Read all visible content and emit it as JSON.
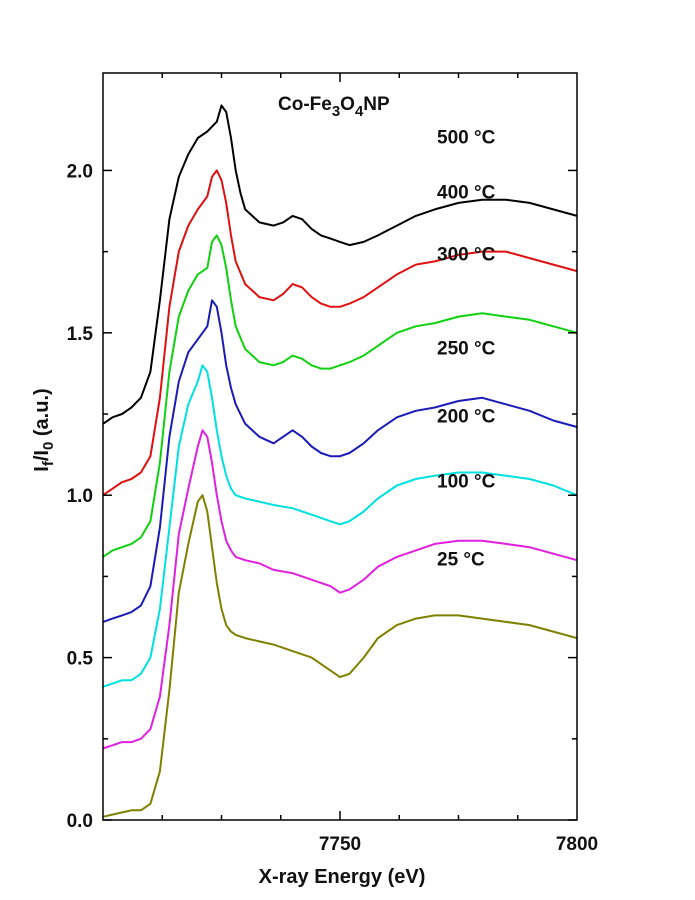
{
  "chart_data": {
    "type": "line",
    "title_parts": {
      "a": "Co-Fe",
      "b": "3",
      "c": "O",
      "d": "4",
      "e": "NP"
    },
    "xlabel": "X-ray Energy (eV)",
    "ylabel_parts": {
      "a": "I",
      "b": "f",
      "c": "/I",
      "d": "0",
      "e": " (a.u.)"
    },
    "xlim": [
      7700,
      7800
    ],
    "ylim": [
      0,
      2.3
    ],
    "x_ticks": [
      7750,
      7800
    ],
    "y_ticks": [
      0.0,
      0.5,
      1.0,
      1.5,
      2.0
    ],
    "y_tick_labels": [
      "0.0",
      "0.5",
      "1.0",
      "1.5",
      "2.0"
    ],
    "legend": "inline labels at right",
    "grid": false,
    "series": [
      {
        "name": "25 °C",
        "color": "#808000",
        "x": [
          7700,
          7703,
          7706,
          7708,
          7710,
          7712,
          7714,
          7716,
          7718,
          7720,
          7721,
          7722,
          7723,
          7724,
          7725,
          7726,
          7727,
          7728,
          7730,
          7733,
          7736,
          7740,
          7744,
          7748,
          7750,
          7752,
          7755,
          7758,
          7762,
          7766,
          7770,
          7775,
          7780,
          7785,
          7790,
          7795,
          7800
        ],
        "y": [
          0.01,
          0.02,
          0.03,
          0.03,
          0.05,
          0.15,
          0.4,
          0.7,
          0.85,
          0.98,
          1.0,
          0.95,
          0.84,
          0.73,
          0.65,
          0.6,
          0.58,
          0.57,
          0.56,
          0.55,
          0.54,
          0.52,
          0.5,
          0.46,
          0.44,
          0.45,
          0.5,
          0.56,
          0.6,
          0.62,
          0.63,
          0.63,
          0.62,
          0.61,
          0.6,
          0.58,
          0.56
        ]
      },
      {
        "name": "100 °C",
        "color": "#e020e0",
        "x": [
          7700,
          7702,
          7704,
          7706,
          7708,
          7710,
          7712,
          7714,
          7716,
          7718,
          7720,
          7721,
          7722,
          7723,
          7724,
          7725,
          7726,
          7727,
          7728,
          7730,
          7733,
          7736,
          7740,
          7744,
          7748,
          7750,
          7752,
          7755,
          7758,
          7762,
          7766,
          7770,
          7775,
          7780,
          7785,
          7790,
          7795,
          7800
        ],
        "y": [
          0.22,
          0.23,
          0.24,
          0.24,
          0.25,
          0.28,
          0.38,
          0.6,
          0.88,
          1.02,
          1.15,
          1.2,
          1.18,
          1.1,
          1.0,
          0.92,
          0.86,
          0.83,
          0.81,
          0.8,
          0.79,
          0.77,
          0.76,
          0.74,
          0.72,
          0.7,
          0.71,
          0.74,
          0.78,
          0.81,
          0.83,
          0.85,
          0.86,
          0.86,
          0.85,
          0.84,
          0.82,
          0.8
        ]
      },
      {
        "name": "200 °C",
        "color": "#00e0e0",
        "x": [
          7700,
          7702,
          7704,
          7706,
          7708,
          7710,
          7712,
          7714,
          7716,
          7718,
          7720,
          7721,
          7722,
          7723,
          7724,
          7725,
          7726,
          7727,
          7728,
          7730,
          7733,
          7736,
          7740,
          7744,
          7748,
          7750,
          7752,
          7755,
          7758,
          7762,
          7766,
          7770,
          7775,
          7780,
          7785,
          7790,
          7795,
          7800
        ],
        "y": [
          0.41,
          0.42,
          0.43,
          0.43,
          0.45,
          0.5,
          0.65,
          0.9,
          1.15,
          1.28,
          1.35,
          1.4,
          1.38,
          1.3,
          1.2,
          1.12,
          1.06,
          1.02,
          1.0,
          0.99,
          0.98,
          0.97,
          0.96,
          0.94,
          0.92,
          0.91,
          0.92,
          0.95,
          0.99,
          1.03,
          1.05,
          1.06,
          1.07,
          1.07,
          1.06,
          1.05,
          1.03,
          1.0
        ]
      },
      {
        "name": "250 °C",
        "color": "#1a1ab8",
        "x": [
          7700,
          7702,
          7704,
          7706,
          7708,
          7710,
          7712,
          7714,
          7716,
          7718,
          7720,
          7722,
          7723,
          7724,
          7725,
          7726,
          7727,
          7728,
          7730,
          7733,
          7736,
          7738,
          7740,
          7742,
          7744,
          7746,
          7748,
          7750,
          7752,
          7755,
          7758,
          7762,
          7766,
          7770,
          7775,
          7780,
          7785,
          7790,
          7795,
          7800
        ],
        "y": [
          0.61,
          0.62,
          0.63,
          0.64,
          0.66,
          0.72,
          0.9,
          1.18,
          1.35,
          1.44,
          1.48,
          1.52,
          1.6,
          1.58,
          1.5,
          1.4,
          1.33,
          1.28,
          1.22,
          1.18,
          1.16,
          1.18,
          1.2,
          1.18,
          1.15,
          1.13,
          1.12,
          1.12,
          1.13,
          1.16,
          1.2,
          1.24,
          1.26,
          1.27,
          1.29,
          1.3,
          1.28,
          1.26,
          1.23,
          1.21
        ]
      },
      {
        "name": "300 °C",
        "color": "#10d010",
        "x": [
          7700,
          7702,
          7704,
          7706,
          7708,
          7710,
          7712,
          7714,
          7716,
          7718,
          7720,
          7722,
          7723,
          7724,
          7725,
          7726,
          7727,
          7728,
          7730,
          7733,
          7736,
          7738,
          7740,
          7742,
          7744,
          7746,
          7748,
          7750,
          7752,
          7755,
          7758,
          7762,
          7766,
          7770,
          7775,
          7780,
          7785,
          7790,
          7795,
          7800
        ],
        "y": [
          0.81,
          0.83,
          0.84,
          0.85,
          0.87,
          0.92,
          1.1,
          1.38,
          1.55,
          1.63,
          1.68,
          1.7,
          1.78,
          1.8,
          1.77,
          1.7,
          1.6,
          1.52,
          1.45,
          1.41,
          1.4,
          1.41,
          1.43,
          1.42,
          1.4,
          1.39,
          1.39,
          1.4,
          1.41,
          1.43,
          1.46,
          1.5,
          1.52,
          1.53,
          1.55,
          1.56,
          1.55,
          1.54,
          1.52,
          1.5
        ]
      },
      {
        "name": "400 °C",
        "color": "#e01010",
        "x": [
          7700,
          7702,
          7704,
          7706,
          7708,
          7710,
          7712,
          7714,
          7716,
          7718,
          7720,
          7722,
          7723,
          7724,
          7725,
          7726,
          7727,
          7728,
          7730,
          7733,
          7736,
          7738,
          7740,
          7742,
          7744,
          7746,
          7748,
          7750,
          7752,
          7755,
          7758,
          7762,
          7766,
          7770,
          7775,
          7780,
          7785,
          7790,
          7795,
          7800
        ],
        "y": [
          1.0,
          1.02,
          1.04,
          1.05,
          1.07,
          1.12,
          1.3,
          1.58,
          1.75,
          1.83,
          1.88,
          1.92,
          1.98,
          2.0,
          1.97,
          1.9,
          1.8,
          1.72,
          1.65,
          1.61,
          1.6,
          1.62,
          1.65,
          1.64,
          1.61,
          1.59,
          1.58,
          1.58,
          1.59,
          1.61,
          1.64,
          1.68,
          1.71,
          1.72,
          1.74,
          1.75,
          1.75,
          1.73,
          1.71,
          1.69
        ]
      },
      {
        "name": "500 °C",
        "color": "#000000",
        "x": [
          7700,
          7702,
          7704,
          7706,
          7708,
          7710,
          7712,
          7714,
          7716,
          7718,
          7720,
          7722,
          7724,
          7725,
          7726,
          7727,
          7728,
          7729,
          7730,
          7733,
          7736,
          7738,
          7740,
          7742,
          7744,
          7746,
          7748,
          7750,
          7752,
          7755,
          7758,
          7762,
          7766,
          7770,
          7775,
          7780,
          7785,
          7790,
          7795,
          7800
        ],
        "y": [
          1.22,
          1.24,
          1.25,
          1.27,
          1.3,
          1.38,
          1.6,
          1.85,
          1.98,
          2.05,
          2.1,
          2.12,
          2.15,
          2.2,
          2.18,
          2.1,
          2.0,
          1.93,
          1.88,
          1.84,
          1.83,
          1.84,
          1.86,
          1.85,
          1.82,
          1.8,
          1.79,
          1.78,
          1.77,
          1.78,
          1.8,
          1.83,
          1.86,
          1.88,
          1.9,
          1.91,
          1.91,
          1.9,
          1.88,
          1.86
        ]
      }
    ]
  }
}
